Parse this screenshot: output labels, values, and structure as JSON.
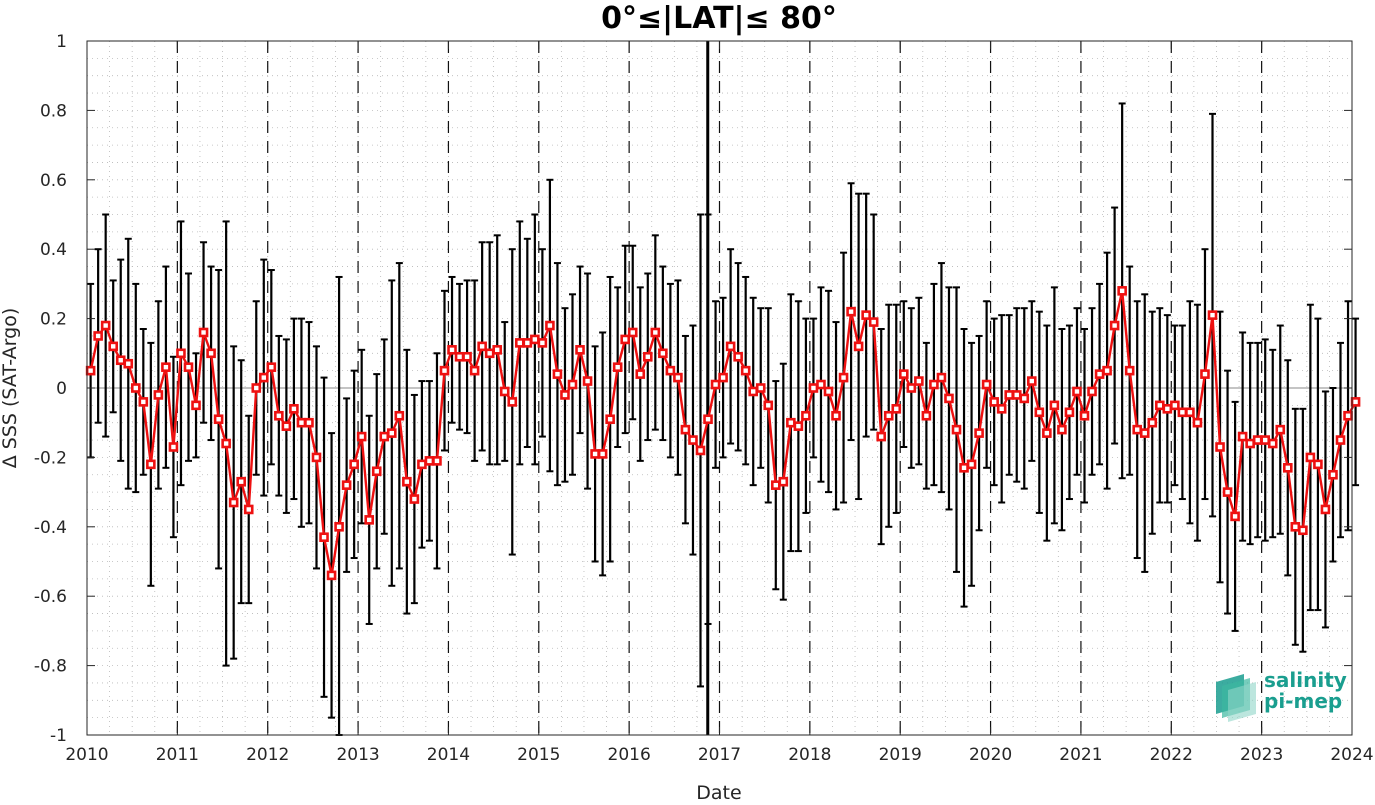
{
  "chart_data": {
    "type": "line",
    "title": "0°≤|LAT|≤ 80°",
    "xlabel": "Date",
    "ylabel": "Δ SSS (SAT-Argo)",
    "xlim": [
      2010,
      2024
    ],
    "ylim": [
      -1,
      1
    ],
    "x_ticks": [
      "2010",
      "2011",
      "2012",
      "2013",
      "2014",
      "2015",
      "2016",
      "2017",
      "2018",
      "2019",
      "2020",
      "2021",
      "2022",
      "2023",
      "2024"
    ],
    "y_ticks": [
      "-1",
      "-0.8",
      "-0.6",
      "-0.4",
      "-0.2",
      "0",
      "0.2",
      "0.4",
      "0.6",
      "0.8",
      "1"
    ],
    "grid": "dotted-minor",
    "year_dividers": "dashed",
    "event_line_x": 2016.87,
    "series": [
      {
        "color": "#ee1111",
        "marker": "square",
        "x_start": 2010.04,
        "x_step": 0.08333,
        "values": [
          0.05,
          0.15,
          0.18,
          0.12,
          0.08,
          0.07,
          0.0,
          -0.04,
          -0.22,
          -0.02,
          0.06,
          -0.17,
          0.1,
          0.06,
          -0.05,
          0.16,
          0.1,
          -0.09,
          -0.16,
          -0.33,
          -0.27,
          -0.35,
          0.0,
          0.03,
          0.06,
          -0.08,
          -0.11,
          -0.06,
          -0.1,
          -0.1,
          -0.2,
          -0.43,
          -0.54,
          -0.4,
          -0.28,
          -0.22,
          -0.14,
          -0.38,
          -0.24,
          -0.14,
          -0.13,
          -0.08,
          -0.27,
          -0.32,
          -0.22,
          -0.21,
          -0.21,
          0.05,
          0.11,
          0.09,
          0.09,
          0.05,
          0.12,
          0.1,
          0.11,
          -0.01,
          -0.04,
          0.13,
          0.13,
          0.14,
          0.13,
          0.18,
          0.04,
          -0.02,
          0.01,
          0.11,
          0.02,
          -0.19,
          -0.19,
          -0.09,
          0.06,
          0.14,
          0.16,
          0.04,
          0.09,
          0.16,
          0.1,
          0.05,
          0.03,
          -0.12,
          -0.15,
          -0.18,
          -0.09,
          0.01,
          0.03,
          0.12,
          0.09,
          0.05,
          -0.01,
          0.0,
          -0.05,
          -0.28,
          -0.27,
          -0.1,
          -0.11,
          -0.08,
          0.0,
          0.01,
          -0.01,
          -0.08,
          0.03,
          0.22,
          0.12,
          0.21,
          0.19,
          -0.14,
          -0.08,
          -0.06,
          0.04,
          0.0,
          0.02,
          -0.08,
          0.01,
          0.03,
          -0.03,
          -0.12,
          -0.23,
          -0.22,
          -0.13,
          0.01,
          -0.04,
          -0.06,
          -0.02,
          -0.02,
          -0.03,
          0.02,
          -0.07,
          -0.13,
          -0.05,
          -0.12,
          -0.07,
          -0.01,
          -0.08,
          -0.01,
          0.04,
          0.05,
          0.18,
          0.28,
          0.05,
          -0.12,
          -0.13,
          -0.1,
          -0.05,
          -0.06,
          -0.05,
          -0.07,
          -0.07,
          -0.1,
          0.04,
          0.21,
          -0.17,
          -0.3,
          -0.37,
          -0.14,
          -0.16,
          -0.15,
          -0.15,
          -0.16,
          -0.12,
          -0.23,
          -0.4,
          -0.41,
          -0.2,
          -0.22,
          -0.35,
          -0.25,
          -0.15,
          -0.08,
          -0.04
        ],
        "err_half": [
          0.25,
          0.25,
          0.32,
          0.19,
          0.29,
          0.36,
          0.3,
          0.21,
          0.35,
          0.27,
          0.29,
          0.26,
          0.38,
          0.27,
          0.15,
          0.26,
          0.25,
          0.43,
          0.64,
          0.45,
          0.35,
          0.27,
          0.25,
          0.34,
          0.28,
          0.23,
          0.25,
          0.26,
          0.3,
          0.29,
          0.32,
          0.46,
          0.41,
          0.72,
          0.25,
          0.27,
          0.25,
          0.3,
          0.28,
          0.28,
          0.44,
          0.44,
          0.38,
          0.3,
          0.24,
          0.23,
          0.31,
          0.23,
          0.21,
          0.21,
          0.22,
          0.26,
          0.3,
          0.32,
          0.33,
          0.2,
          0.44,
          0.35,
          0.3,
          0.36,
          0.27,
          0.42,
          0.32,
          0.25,
          0.26,
          0.24,
          0.31,
          0.31,
          0.35,
          0.41,
          0.23,
          0.27,
          0.25,
          0.25,
          0.24,
          0.28,
          0.25,
          0.25,
          0.28,
          0.27,
          0.33,
          0.68,
          0.59,
          0.24,
          0.23,
          0.28,
          0.27,
          0.27,
          0.27,
          0.23,
          0.28,
          0.3,
          0.34,
          0.37,
          0.36,
          0.28,
          0.2,
          0.28,
          0.29,
          0.27,
          0.36,
          0.37,
          0.44,
          0.35,
          0.31,
          0.31,
          0.32,
          0.3,
          0.21,
          0.23,
          0.24,
          0.21,
          0.29,
          0.33,
          0.32,
          0.41,
          0.4,
          0.35,
          0.28,
          0.24,
          0.24,
          0.27,
          0.23,
          0.25,
          0.26,
          0.23,
          0.29,
          0.31,
          0.34,
          0.29,
          0.25,
          0.24,
          0.25,
          0.24,
          0.26,
          0.34,
          0.34,
          0.54,
          0.3,
          0.37,
          0.4,
          0.32,
          0.28,
          0.27,
          0.23,
          0.25,
          0.32,
          0.34,
          0.36,
          0.58,
          0.39,
          0.35,
          0.33,
          0.3,
          0.29,
          0.28,
          0.29,
          0.27,
          0.3,
          0.31,
          0.34,
          0.35,
          0.44,
          0.42,
          0.34,
          0.25,
          0.28,
          0.33,
          0.24
        ]
      }
    ]
  },
  "logo": {
    "line1": "salinity",
    "line2": "pi-mep"
  }
}
